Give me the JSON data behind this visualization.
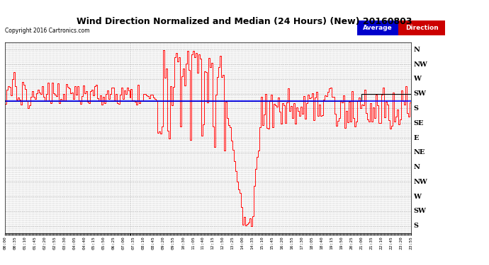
{
  "title": "Wind Direction Normalized and Median (24 Hours) (New) 20160803",
  "copyright": "Copyright 2016 Cartronics.com",
  "avg_word": "Average",
  "dir_word": "Direction",
  "avg_bg": "#0000cc",
  "dir_bg": "#cc0000",
  "avg_text_color": "#ffffff",
  "dir_text_color": "#ffffff",
  "avg_direction_value": 3.5,
  "bg_color": "#ffffff",
  "plot_bg": "#ffffff",
  "red_line_color": "#ff0000",
  "black_line_color": "#000000",
  "blue_line_color": "#0000ff",
  "ytick_labels": [
    "N",
    "NW",
    "W",
    "SW",
    "S",
    "SE",
    "E",
    "NE",
    "N",
    "NW",
    "W",
    "SW",
    "S"
  ],
  "ytick_values": [
    0,
    1,
    2,
    3,
    4,
    5,
    6,
    7,
    8,
    9,
    10,
    11,
    12
  ],
  "grid_color": "#aaaaaa",
  "grid_style": "--"
}
